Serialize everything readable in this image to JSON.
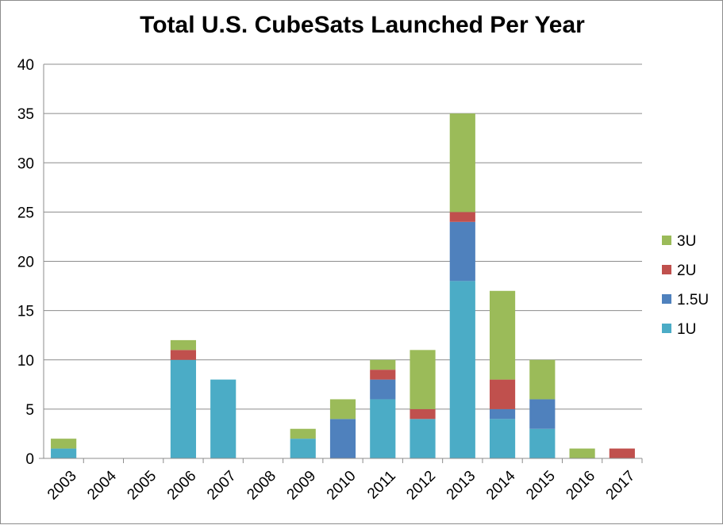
{
  "chart_data": {
    "type": "bar",
    "stacked": true,
    "title": "Total U.S. CubeSats Launched Per Year",
    "xlabel": "",
    "ylabel": "",
    "categories": [
      "2003",
      "2004",
      "2005",
      "2006",
      "2007",
      "2008",
      "2009",
      "2010",
      "2011",
      "2012",
      "2013",
      "2014",
      "2015",
      "2016",
      "2017"
    ],
    "series": [
      {
        "name": "1U",
        "color": "#4bacc6",
        "values": [
          1,
          0,
          0,
          10,
          8,
          0,
          2,
          0,
          6,
          4,
          18,
          4,
          3,
          0,
          0
        ]
      },
      {
        "name": "1.5U",
        "color": "#4f81bd",
        "values": [
          0,
          0,
          0,
          0,
          0,
          0,
          0,
          4,
          2,
          0,
          6,
          1,
          3,
          0,
          0
        ]
      },
      {
        "name": "2U",
        "color": "#c0504d",
        "values": [
          0,
          0,
          0,
          1,
          0,
          0,
          0,
          0,
          1,
          1,
          1,
          3,
          0,
          0,
          1
        ]
      },
      {
        "name": "3U",
        "color": "#9bbb59",
        "values": [
          1,
          0,
          0,
          1,
          0,
          0,
          1,
          2,
          1,
          6,
          10,
          9,
          4,
          1,
          0
        ]
      }
    ],
    "yticks": [
      "0",
      "5",
      "10",
      "15",
      "20",
      "25",
      "30",
      "35",
      "40"
    ],
    "ylim": [
      0,
      40
    ],
    "grid": true,
    "legend_position": "right"
  }
}
